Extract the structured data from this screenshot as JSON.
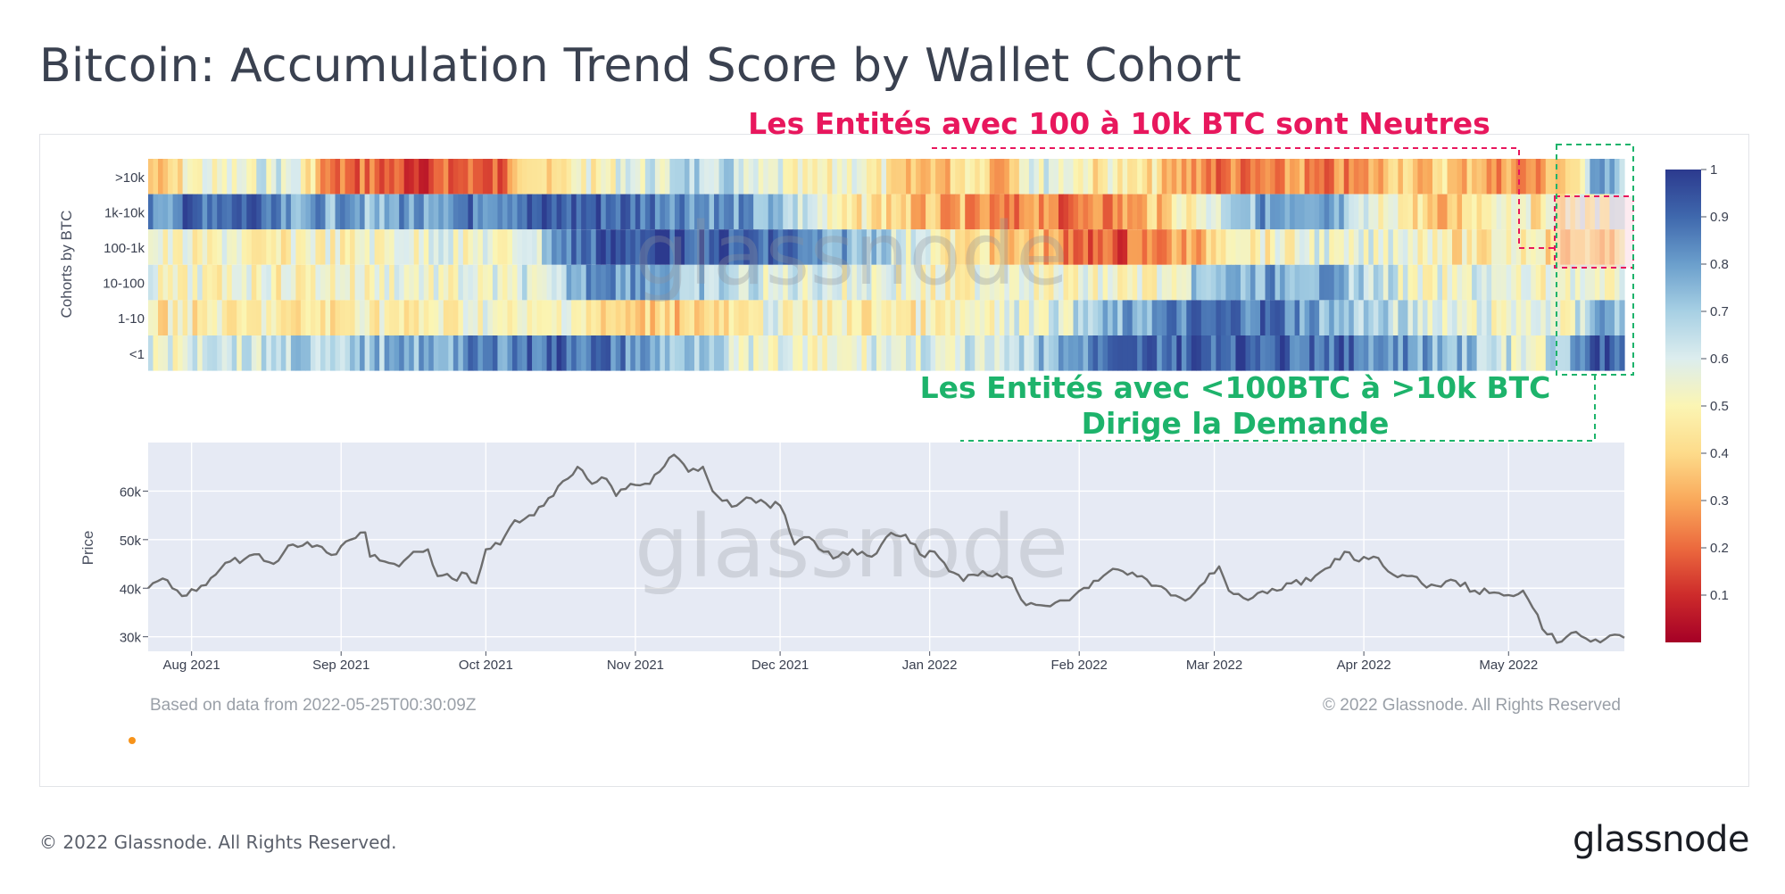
{
  "title": "Bitcoin: Accumulation Trend Score by Wallet Cohort",
  "footer": {
    "based_on": "Based on data from 2022-05-25T00:30:09Z",
    "copyright_inner": "© 2022 Glassnode. All Rights Reserved",
    "copyright_outer": "© 2022 Glassnode. All Rights Reserved.",
    "brand": "glassnode"
  },
  "watermark": "glassnode",
  "annotations": {
    "neutral": "Les Entités avec 100 à 10k BTC sont Neutres",
    "demand_line1": "Les Entités avec <100BTC à >10k BTC",
    "demand_line2": "Dirige la Demande",
    "neutral_color": "#e8175d",
    "demand_color": "#1db36b"
  },
  "chart_data": [
    {
      "type": "heatmap",
      "ylabel": "Cohorts by BTC",
      "cohorts": [
        ">10k",
        "1k-10k",
        "100-1k",
        "10-100",
        "1-10",
        "<1"
      ],
      "colorscale": {
        "min": 0,
        "max": 1,
        "ticks": [
          "1",
          "0.9",
          "0.8",
          "0.7",
          "0.6",
          "0.5",
          "0.4",
          "0.3",
          "0.2",
          "0.1"
        ]
      },
      "x_range": [
        "2021-07-23",
        "2022-05-25"
      ],
      "keypoints": {
        ">10k": [
          [
            0,
            0.35
          ],
          [
            0.04,
            0.55
          ],
          [
            0.1,
            0.6
          ],
          [
            0.12,
            0.25
          ],
          [
            0.18,
            0.15
          ],
          [
            0.24,
            0.2
          ],
          [
            0.27,
            0.45
          ],
          [
            0.32,
            0.55
          ],
          [
            0.38,
            0.7
          ],
          [
            0.44,
            0.55
          ],
          [
            0.5,
            0.5
          ],
          [
            0.53,
            0.3
          ],
          [
            0.56,
            0.45
          ],
          [
            0.58,
            0.2
          ],
          [
            0.6,
            0.6
          ],
          [
            0.64,
            0.45
          ],
          [
            0.67,
            0.5
          ],
          [
            0.72,
            0.2
          ],
          [
            0.77,
            0.3
          ],
          [
            0.8,
            0.25
          ],
          [
            0.85,
            0.35
          ],
          [
            0.88,
            0.4
          ],
          [
            0.9,
            0.3
          ],
          [
            0.93,
            0.25
          ],
          [
            0.96,
            0.35
          ],
          [
            0.98,
            0.75
          ],
          [
            1,
            0.72
          ]
        ],
        "1k-10k": [
          [
            0,
            0.8
          ],
          [
            0.03,
            0.9
          ],
          [
            0.08,
            0.95
          ],
          [
            0.1,
            0.8
          ],
          [
            0.15,
            0.75
          ],
          [
            0.2,
            0.85
          ],
          [
            0.25,
            0.9
          ],
          [
            0.3,
            0.92
          ],
          [
            0.35,
            0.88
          ],
          [
            0.4,
            0.8
          ],
          [
            0.45,
            0.6
          ],
          [
            0.5,
            0.4
          ],
          [
            0.56,
            0.3
          ],
          [
            0.6,
            0.25
          ],
          [
            0.64,
            0.2
          ],
          [
            0.68,
            0.35
          ],
          [
            0.72,
            0.55
          ],
          [
            0.76,
            0.82
          ],
          [
            0.8,
            0.85
          ],
          [
            0.84,
            0.5
          ],
          [
            0.88,
            0.35
          ],
          [
            0.92,
            0.5
          ],
          [
            0.95,
            0.45
          ],
          [
            0.98,
            0.55
          ],
          [
            1,
            0.55
          ]
        ],
        "100-1k": [
          [
            0,
            0.55
          ],
          [
            0.1,
            0.5
          ],
          [
            0.2,
            0.55
          ],
          [
            0.26,
            0.55
          ],
          [
            0.28,
            0.85
          ],
          [
            0.32,
            0.95
          ],
          [
            0.38,
            0.95
          ],
          [
            0.44,
            0.9
          ],
          [
            0.5,
            0.65
          ],
          [
            0.55,
            0.45
          ],
          [
            0.6,
            0.35
          ],
          [
            0.65,
            0.15
          ],
          [
            0.7,
            0.3
          ],
          [
            0.74,
            0.45
          ],
          [
            0.78,
            0.55
          ],
          [
            0.82,
            0.6
          ],
          [
            0.88,
            0.45
          ],
          [
            0.92,
            0.5
          ],
          [
            0.96,
            0.4
          ],
          [
            0.98,
            0.4
          ],
          [
            1,
            0.45
          ]
        ],
        "10-100": [
          [
            0,
            0.55
          ],
          [
            0.1,
            0.5
          ],
          [
            0.2,
            0.55
          ],
          [
            0.26,
            0.6
          ],
          [
            0.3,
            0.8
          ],
          [
            0.36,
            0.75
          ],
          [
            0.42,
            0.6
          ],
          [
            0.5,
            0.55
          ],
          [
            0.58,
            0.5
          ],
          [
            0.64,
            0.55
          ],
          [
            0.68,
            0.5
          ],
          [
            0.72,
            0.75
          ],
          [
            0.78,
            0.8
          ],
          [
            0.82,
            0.7
          ],
          [
            0.86,
            0.55
          ],
          [
            0.92,
            0.6
          ],
          [
            0.96,
            0.5
          ],
          [
            0.98,
            0.6
          ],
          [
            1,
            0.55
          ]
        ],
        "1-10": [
          [
            0,
            0.45
          ],
          [
            0.06,
            0.5
          ],
          [
            0.12,
            0.45
          ],
          [
            0.2,
            0.5
          ],
          [
            0.26,
            0.55
          ],
          [
            0.3,
            0.45
          ],
          [
            0.36,
            0.35
          ],
          [
            0.42,
            0.55
          ],
          [
            0.5,
            0.45
          ],
          [
            0.56,
            0.55
          ],
          [
            0.62,
            0.6
          ],
          [
            0.66,
            0.75
          ],
          [
            0.7,
            0.85
          ],
          [
            0.76,
            0.9
          ],
          [
            0.8,
            0.75
          ],
          [
            0.84,
            0.65
          ],
          [
            0.88,
            0.6
          ],
          [
            0.92,
            0.55
          ],
          [
            0.96,
            0.55
          ],
          [
            0.98,
            0.75
          ],
          [
            1,
            0.78
          ]
        ],
        "<1": [
          [
            0,
            0.55
          ],
          [
            0.06,
            0.6
          ],
          [
            0.12,
            0.7
          ],
          [
            0.18,
            0.75
          ],
          [
            0.24,
            0.85
          ],
          [
            0.28,
            0.92
          ],
          [
            0.32,
            0.85
          ],
          [
            0.36,
            0.7
          ],
          [
            0.4,
            0.6
          ],
          [
            0.46,
            0.55
          ],
          [
            0.54,
            0.6
          ],
          [
            0.6,
            0.7
          ],
          [
            0.64,
            0.85
          ],
          [
            0.68,
            0.9
          ],
          [
            0.74,
            0.95
          ],
          [
            0.8,
            0.9
          ],
          [
            0.86,
            0.8
          ],
          [
            0.9,
            0.7
          ],
          [
            0.94,
            0.55
          ],
          [
            0.98,
            0.95
          ],
          [
            1,
            0.95
          ]
        ]
      }
    },
    {
      "type": "line",
      "ylabel": "Price",
      "ylim": [
        27000,
        70000
      ],
      "yticks": [
        "60k",
        "50k",
        "40k",
        "30k"
      ],
      "ytick_values": [
        60000,
        50000,
        40000,
        30000
      ],
      "xticks": [
        "Aug 2021",
        "Sep 2021",
        "Oct 2021",
        "Nov 2021",
        "Dec 2021",
        "Jan 2022",
        "Feb 2022",
        "Mar 2022",
        "Apr 2022",
        "May 2022"
      ],
      "xtick_dates": [
        "2021-08-01",
        "2021-09-01",
        "2021-10-01",
        "2021-11-01",
        "2021-12-01",
        "2022-01-01",
        "2022-02-01",
        "2022-03-01",
        "2022-04-01",
        "2022-05-01"
      ],
      "x_start": "2021-07-23",
      "x_end": "2022-05-25",
      "series": [
        {
          "name": "Price",
          "points": [
            [
              "2021-07-23",
              40000
            ],
            [
              "2021-07-26",
              42000
            ],
            [
              "2021-07-28",
              40000
            ],
            [
              "2021-07-31",
              38500
            ],
            [
              "2021-08-03",
              40500
            ],
            [
              "2021-08-07",
              44000
            ],
            [
              "2021-08-09",
              45500
            ],
            [
              "2021-08-12",
              46000
            ],
            [
              "2021-08-15",
              47000
            ],
            [
              "2021-08-18",
              45000
            ],
            [
              "2021-08-22",
              49000
            ],
            [
              "2021-08-25",
              49500
            ],
            [
              "2021-08-28",
              48500
            ],
            [
              "2021-08-31",
              47000
            ],
            [
              "2021-09-03",
              50000
            ],
            [
              "2021-09-06",
              51500
            ],
            [
              "2021-09-07",
              46500
            ],
            [
              "2021-09-10",
              45500
            ],
            [
              "2021-09-13",
              44500
            ],
            [
              "2021-09-16",
              47500
            ],
            [
              "2021-09-19",
              48000
            ],
            [
              "2021-09-21",
              42500
            ],
            [
              "2021-09-24",
              42000
            ],
            [
              "2021-09-27",
              43000
            ],
            [
              "2021-09-29",
              41000
            ],
            [
              "2021-10-01",
              48000
            ],
            [
              "2021-10-04",
              49000
            ],
            [
              "2021-10-07",
              54000
            ],
            [
              "2021-10-10",
              55000
            ],
            [
              "2021-10-13",
              57000
            ],
            [
              "2021-10-16",
              61000
            ],
            [
              "2021-10-20",
              65000
            ],
            [
              "2021-10-23",
              61500
            ],
            [
              "2021-10-26",
              62500
            ],
            [
              "2021-10-28",
              59000
            ],
            [
              "2021-10-31",
              61500
            ],
            [
              "2021-11-04",
              61500
            ],
            [
              "2021-11-06",
              64000
            ],
            [
              "2021-11-09",
              67500
            ],
            [
              "2021-11-12",
              64000
            ],
            [
              "2021-11-15",
              65000
            ],
            [
              "2021-11-17",
              60000
            ],
            [
              "2021-11-19",
              58000
            ],
            [
              "2021-11-22",
              57000
            ],
            [
              "2021-11-25",
              58500
            ],
            [
              "2021-11-28",
              57500
            ],
            [
              "2021-12-01",
              57000
            ],
            [
              "2021-12-04",
              49000
            ],
            [
              "2021-12-07",
              50500
            ],
            [
              "2021-12-10",
              47500
            ],
            [
              "2021-12-13",
              46500
            ],
            [
              "2021-12-16",
              48000
            ],
            [
              "2021-12-20",
              46500
            ],
            [
              "2021-12-23",
              50500
            ],
            [
              "2021-12-27",
              51000
            ],
            [
              "2021-12-30",
              47000
            ],
            [
              "2022-01-02",
              47500
            ],
            [
              "2022-01-05",
              43500
            ],
            [
              "2022-01-08",
              41500
            ],
            [
              "2022-01-12",
              43500
            ],
            [
              "2022-01-15",
              43000
            ],
            [
              "2022-01-18",
              42000
            ],
            [
              "2022-01-21",
              36500
            ],
            [
              "2022-01-24",
              36500
            ],
            [
              "2022-01-27",
              37000
            ],
            [
              "2022-01-31",
              38500
            ],
            [
              "2022-02-04",
              41500
            ],
            [
              "2022-02-08",
              44000
            ],
            [
              "2022-02-10",
              43500
            ],
            [
              "2022-02-14",
              42500
            ],
            [
              "2022-02-17",
              40500
            ],
            [
              "2022-02-21",
              38500
            ],
            [
              "2022-02-24",
              38000
            ],
            [
              "2022-02-28",
              43000
            ],
            [
              "2022-03-02",
              44500
            ],
            [
              "2022-03-04",
              39500
            ],
            [
              "2022-03-07",
              38000
            ],
            [
              "2022-03-10",
              39000
            ],
            [
              "2022-03-14",
              39500
            ],
            [
              "2022-03-17",
              41000
            ],
            [
              "2022-03-21",
              41500
            ],
            [
              "2022-03-24",
              44000
            ],
            [
              "2022-03-28",
              47500
            ],
            [
              "2022-03-31",
              45500
            ],
            [
              "2022-04-03",
              46500
            ],
            [
              "2022-04-06",
              43500
            ],
            [
              "2022-04-10",
              42500
            ],
            [
              "2022-04-13",
              41000
            ],
            [
              "2022-04-16",
              40500
            ],
            [
              "2022-04-20",
              41500
            ],
            [
              "2022-04-24",
              39500
            ],
            [
              "2022-04-27",
              39000
            ],
            [
              "2022-04-30",
              38500
            ],
            [
              "2022-05-04",
              39500
            ],
            [
              "2022-05-06",
              36000
            ],
            [
              "2022-05-09",
              30500
            ],
            [
              "2022-05-12",
              29000
            ],
            [
              "2022-05-15",
              31000
            ],
            [
              "2022-05-18",
              29000
            ],
            [
              "2022-05-21",
              29500
            ],
            [
              "2022-05-25",
              29800
            ]
          ]
        }
      ]
    }
  ]
}
